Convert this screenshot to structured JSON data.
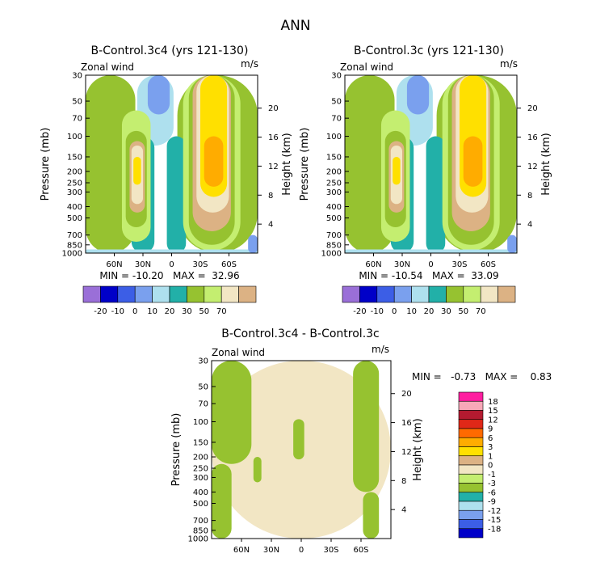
{
  "page_title": "ANN",
  "colors": {
    "fill": [
      "#9a6fd8",
      "#0000c8",
      "#3c5ee6",
      "#7aa0ee",
      "#aee0ee",
      "#22b0a8",
      "#96c230",
      "#c4ee70",
      "#f2e6c4",
      "#dcb284",
      "#ffe000",
      "#ffac00",
      "#ff6a00",
      "#e02818",
      "#b41a30",
      "#f7a8b8",
      "#ff1ea0"
    ],
    "frame": "#000000"
  },
  "chart_data": [
    {
      "type": "contour",
      "title": "B-Control.3c4 (yrs 121-130)",
      "left_label": "Zonal wind",
      "right_label": "m/s",
      "xlabel": "",
      "ylabel": "Pressure (mb)",
      "ylabel_right": "Height (km)",
      "x_ticks": [
        "60N",
        "30N",
        "0",
        "30S",
        "60S"
      ],
      "x_tick_values": [
        60,
        30,
        0,
        -30,
        -60
      ],
      "xlim": [
        90,
        -90
      ],
      "y_ticks": [
        "30",
        "50",
        "70",
        "100",
        "150",
        "200",
        "250",
        "300",
        "400",
        "500",
        "700",
        "850",
        "1000"
      ],
      "y_tick_values": [
        30,
        50,
        70,
        100,
        150,
        200,
        250,
        300,
        400,
        500,
        700,
        850,
        1000
      ],
      "ylim": [
        1000,
        30
      ],
      "height_ticks": [
        "20",
        "16",
        "12",
        "8",
        "4"
      ],
      "height_tick_values": [
        20,
        16,
        12,
        8,
        4
      ],
      "stats": "MIN = -10.20   MAX =  32.96",
      "legend_labels": [
        "-20",
        "-10",
        "0",
        "10",
        "20",
        "30",
        "50",
        "70"
      ],
      "fields": [
        {
          "color_index": 6,
          "lat_min": 90,
          "lat_max": 38,
          "p_min": 30,
          "p_max": 1000
        },
        {
          "color_index": 6,
          "lat_min": -6,
          "lat_max": -90,
          "p_min": 30,
          "p_max": 1000
        },
        {
          "color_index": 4,
          "lat_min": 36,
          "lat_max": -2,
          "p_min": 30,
          "p_max": 120
        },
        {
          "color_index": 3,
          "lat_min": 25,
          "lat_max": 2,
          "p_min": 30,
          "p_max": 65
        },
        {
          "color_index": 5,
          "lat_min": 42,
          "lat_max": 18,
          "p_min": 100,
          "p_max": 1000
        },
        {
          "color_index": 5,
          "lat_min": 5,
          "lat_max": -15,
          "p_min": 100,
          "p_max": 1000
        },
        {
          "color_index": 7,
          "lat_min": 52,
          "lat_max": 22,
          "p_min": 60,
          "p_max": 800
        },
        {
          "color_index": 6,
          "lat_min": 48,
          "lat_max": 26,
          "p_min": 90,
          "p_max": 600
        },
        {
          "color_index": 9,
          "lat_min": 44,
          "lat_max": 28,
          "p_min": 110,
          "p_max": 450
        },
        {
          "color_index": 8,
          "lat_min": 42,
          "lat_max": 30,
          "p_min": 120,
          "p_max": 380
        },
        {
          "color_index": 10,
          "lat_min": 40,
          "lat_max": 32,
          "p_min": 150,
          "p_max": 260
        },
        {
          "color_index": 7,
          "lat_min": -12,
          "lat_max": -72,
          "p_min": 30,
          "p_max": 950
        },
        {
          "color_index": 6,
          "lat_min": -18,
          "lat_max": -66,
          "p_min": 30,
          "p_max": 850
        },
        {
          "color_index": 9,
          "lat_min": -22,
          "lat_max": -62,
          "p_min": 30,
          "p_max": 650
        },
        {
          "color_index": 8,
          "lat_min": -26,
          "lat_max": -60,
          "p_min": 30,
          "p_max": 450
        },
        {
          "color_index": 10,
          "lat_min": -30,
          "lat_max": -58,
          "p_min": 30,
          "p_max": 330
        },
        {
          "color_index": 11,
          "lat_min": -34,
          "lat_max": -54,
          "p_min": 100,
          "p_max": 270
        },
        {
          "color_index": 4,
          "lat_min": 90,
          "lat_max": -90,
          "p_min": 930,
          "p_max": 1000
        },
        {
          "color_index": 3,
          "lat_min": -80,
          "lat_max": -90,
          "p_min": 700,
          "p_max": 1000
        }
      ]
    },
    {
      "type": "contour",
      "title": "B-Control.3c (yrs 121-130)",
      "left_label": "Zonal wind",
      "right_label": "m/s",
      "xlabel": "",
      "ylabel": "Pressure (mb)",
      "ylabel_right": "Height (km)",
      "x_ticks": [
        "60N",
        "30N",
        "0",
        "30S",
        "60S"
      ],
      "x_tick_values": [
        60,
        30,
        0,
        -30,
        -60
      ],
      "xlim": [
        90,
        -90
      ],
      "y_ticks": [
        "30",
        "50",
        "70",
        "100",
        "150",
        "200",
        "250",
        "300",
        "400",
        "500",
        "700",
        "850",
        "1000"
      ],
      "y_tick_values": [
        30,
        50,
        70,
        100,
        150,
        200,
        250,
        300,
        400,
        500,
        700,
        850,
        1000
      ],
      "ylim": [
        1000,
        30
      ],
      "height_ticks": [
        "20",
        "16",
        "12",
        "8",
        "4"
      ],
      "height_tick_values": [
        20,
        16,
        12,
        8,
        4
      ],
      "stats": "MIN = -10.54   MAX =  33.09",
      "legend_labels": [
        "-20",
        "-10",
        "0",
        "10",
        "20",
        "30",
        "50",
        "70"
      ],
      "fields": [
        {
          "color_index": 6,
          "lat_min": 90,
          "lat_max": 38,
          "p_min": 30,
          "p_max": 1000
        },
        {
          "color_index": 6,
          "lat_min": -6,
          "lat_max": -90,
          "p_min": 30,
          "p_max": 1000
        },
        {
          "color_index": 4,
          "lat_min": 36,
          "lat_max": -2,
          "p_min": 30,
          "p_max": 120
        },
        {
          "color_index": 3,
          "lat_min": 25,
          "lat_max": 2,
          "p_min": 30,
          "p_max": 65
        },
        {
          "color_index": 5,
          "lat_min": 42,
          "lat_max": 18,
          "p_min": 100,
          "p_max": 1000
        },
        {
          "color_index": 5,
          "lat_min": 5,
          "lat_max": -15,
          "p_min": 100,
          "p_max": 1000
        },
        {
          "color_index": 7,
          "lat_min": 52,
          "lat_max": 22,
          "p_min": 60,
          "p_max": 800
        },
        {
          "color_index": 6,
          "lat_min": 48,
          "lat_max": 26,
          "p_min": 90,
          "p_max": 600
        },
        {
          "color_index": 9,
          "lat_min": 44,
          "lat_max": 28,
          "p_min": 110,
          "p_max": 450
        },
        {
          "color_index": 8,
          "lat_min": 42,
          "lat_max": 30,
          "p_min": 120,
          "p_max": 380
        },
        {
          "color_index": 10,
          "lat_min": 40,
          "lat_max": 32,
          "p_min": 150,
          "p_max": 260
        },
        {
          "color_index": 7,
          "lat_min": -12,
          "lat_max": -72,
          "p_min": 30,
          "p_max": 950
        },
        {
          "color_index": 6,
          "lat_min": -18,
          "lat_max": -66,
          "p_min": 30,
          "p_max": 850
        },
        {
          "color_index": 9,
          "lat_min": -22,
          "lat_max": -62,
          "p_min": 30,
          "p_max": 650
        },
        {
          "color_index": 8,
          "lat_min": -26,
          "lat_max": -60,
          "p_min": 30,
          "p_max": 450
        },
        {
          "color_index": 10,
          "lat_min": -30,
          "lat_max": -58,
          "p_min": 30,
          "p_max": 330
        },
        {
          "color_index": 11,
          "lat_min": -34,
          "lat_max": -54,
          "p_min": 100,
          "p_max": 270
        },
        {
          "color_index": 4,
          "lat_min": 90,
          "lat_max": -90,
          "p_min": 930,
          "p_max": 1000
        },
        {
          "color_index": 3,
          "lat_min": -80,
          "lat_max": -90,
          "p_min": 700,
          "p_max": 1000
        }
      ]
    },
    {
      "type": "contour",
      "title": "B-Control.3c4 - B-Control.3c",
      "left_label": "Zonal wind",
      "right_label": "m/s",
      "xlabel": "",
      "ylabel": "Pressure (mb)",
      "ylabel_right": "Height (km)",
      "x_ticks": [
        "60N",
        "30N",
        "0",
        "30S",
        "60S"
      ],
      "x_tick_values": [
        60,
        30,
        0,
        -30,
        -60
      ],
      "xlim": [
        90,
        -90
      ],
      "y_ticks": [
        "30",
        "50",
        "70",
        "100",
        "150",
        "200",
        "250",
        "300",
        "400",
        "500",
        "700",
        "850",
        "1000"
      ],
      "y_tick_values": [
        30,
        50,
        70,
        100,
        150,
        200,
        250,
        300,
        400,
        500,
        700,
        850,
        1000
      ],
      "ylim": [
        1000,
        30
      ],
      "height_ticks": [
        "20",
        "16",
        "12",
        "8",
        "4"
      ],
      "height_tick_values": [
        20,
        16,
        12,
        8,
        4
      ],
      "stats": "MIN =   -0.73   MAX =    0.83",
      "legend_labels": [
        "18",
        "15",
        "12",
        "9",
        "6",
        "3",
        "1",
        "0",
        "-1",
        "-3",
        "-6",
        "-9",
        "-12",
        "-15",
        "-18"
      ],
      "fields": [
        {
          "color_index": 8,
          "lat_min": 90,
          "lat_max": -90,
          "p_min": 30,
          "p_max": 1000
        },
        {
          "color_index": 6,
          "lat_min": 90,
          "lat_max": 50,
          "p_min": 30,
          "p_max": 230
        },
        {
          "color_index": 6,
          "lat_min": 90,
          "lat_max": 70,
          "p_min": 230,
          "p_max": 1000
        },
        {
          "color_index": 6,
          "lat_min": -52,
          "lat_max": -78,
          "p_min": 30,
          "p_max": 400
        },
        {
          "color_index": 6,
          "lat_min": -62,
          "lat_max": -78,
          "p_min": 400,
          "p_max": 1000
        },
        {
          "color_index": 6,
          "lat_min": 8,
          "lat_max": -3,
          "p_min": 95,
          "p_max": 210
        },
        {
          "color_index": 6,
          "lat_min": 48,
          "lat_max": 40,
          "p_min": 200,
          "p_max": 330
        }
      ]
    }
  ]
}
